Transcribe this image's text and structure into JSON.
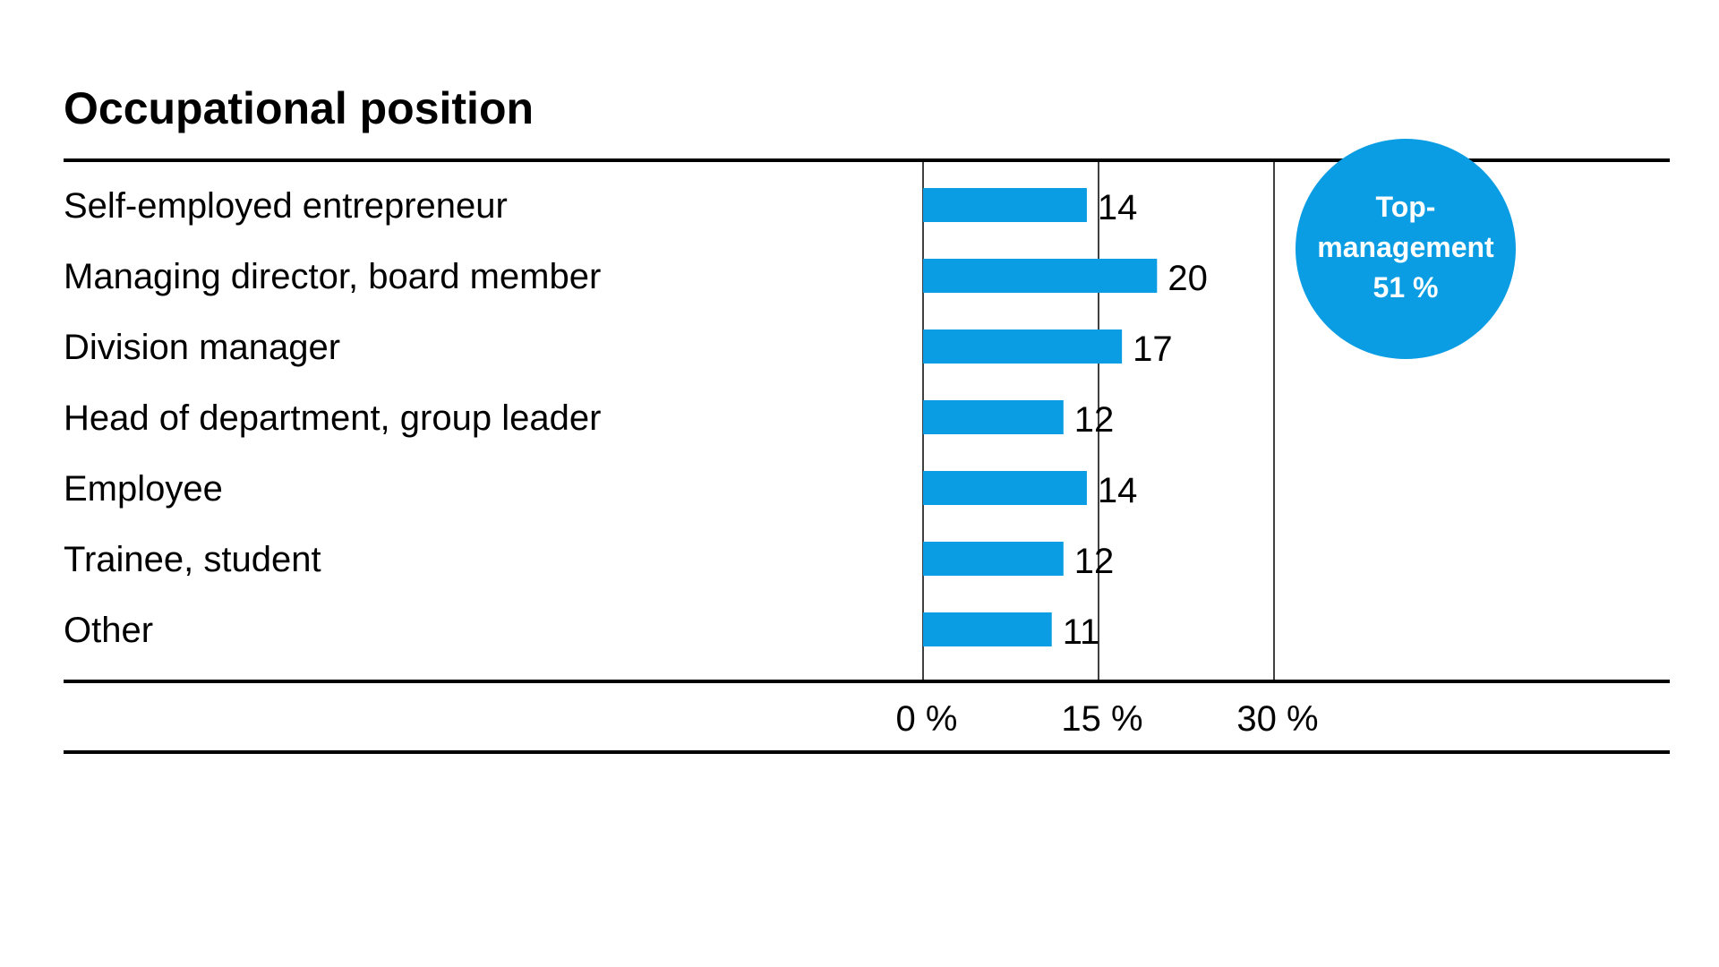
{
  "chart_data": {
    "type": "bar",
    "orientation": "horizontal",
    "title": "Occupational position",
    "categories": [
      "Self-employed entrepreneur",
      "Managing director, board member",
      "Division manager",
      "Head of department, group leader",
      "Employee",
      "Trainee, student",
      "Other"
    ],
    "values": [
      14,
      20,
      17,
      12,
      14,
      12,
      11
    ],
    "value_labels": [
      "14",
      "20",
      "17",
      "12",
      "14",
      "12",
      "11"
    ],
    "xlim": [
      0,
      30
    ],
    "x_ticks": [
      0,
      15,
      30
    ],
    "x_tick_labels": [
      "0 %",
      "15 %",
      "30 %"
    ],
    "grid": true,
    "bar_color": "#0b9de3",
    "annotation": {
      "lines": [
        "Top-",
        "management",
        "51 %"
      ],
      "color": "#0b9de3",
      "text_color": "#ffffff",
      "placement": "top-right"
    }
  }
}
